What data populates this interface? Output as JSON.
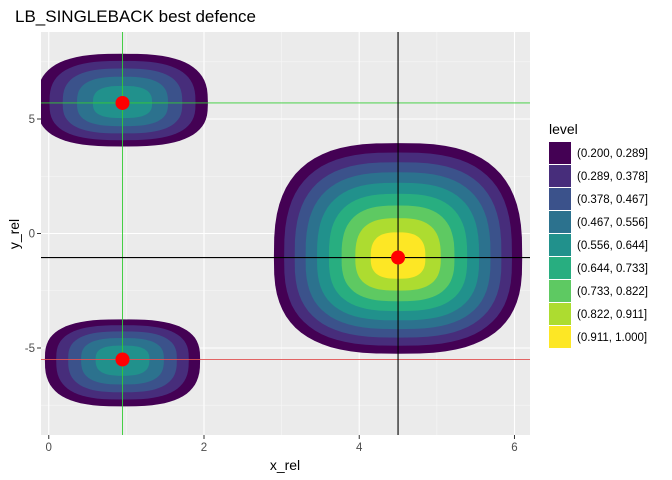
{
  "chart_data": {
    "type": "contour",
    "title": "LB_SINGLEBACK best defence",
    "xlabel": "x_rel",
    "ylabel": "y_rel",
    "xlim": [
      -0.1,
      6.2
    ],
    "ylim": [
      -8.8,
      8.8
    ],
    "x_ticks": [
      0,
      2,
      4,
      6
    ],
    "y_ticks": [
      -5,
      0,
      5
    ],
    "x_tick_labels": [
      "0",
      "2",
      "4",
      "6"
    ],
    "y_tick_labels": [
      "-5",
      "0",
      "5"
    ],
    "grid": true,
    "panel_background": "#ebebeb",
    "legend": {
      "title": "level",
      "placement": "right",
      "entries": [
        {
          "label": "(0.200, 0.289]",
          "color": "#440154"
        },
        {
          "label": "(0.289, 0.378]",
          "color": "#472d7b"
        },
        {
          "label": "(0.378, 0.467]",
          "color": "#3b528b"
        },
        {
          "label": "(0.467, 0.556]",
          "color": "#2c728e"
        },
        {
          "label": "(0.556, 0.644]",
          "color": "#21918c"
        },
        {
          "label": "(0.644, 0.733]",
          "color": "#28ae80"
        },
        {
          "label": "(0.733, 0.822]",
          "color": "#5ec962"
        },
        {
          "label": "(0.822, 0.911]",
          "color": "#addc30"
        },
        {
          "label": "(0.911, 1.000]",
          "color": "#fde725"
        }
      ]
    },
    "density_regions": [
      {
        "cx": 4.5,
        "cy": -1.05,
        "rx": 1.6,
        "ry_up": 5.0,
        "ry_down": 4.2,
        "max_level": 1.0
      },
      {
        "cx": 0.95,
        "cy": 5.7,
        "rx": 1.1,
        "ry_up": 2.15,
        "ry_down": 1.9,
        "max_level": 0.65
      },
      {
        "cx": 0.95,
        "cy": -5.5,
        "rx": 1.0,
        "ry_up": 1.75,
        "ry_down": 2.05,
        "max_level": 0.65
      }
    ],
    "points": [
      {
        "x": 0.95,
        "y": 5.7,
        "color": "#ff0000"
      },
      {
        "x": 0.95,
        "y": -5.5,
        "color": "#ff0000"
      },
      {
        "x": 4.5,
        "y": -1.05,
        "color": "#ff0000"
      }
    ],
    "reference_lines": [
      {
        "orientation": "vertical",
        "value": 0.95,
        "color": "#33cc33"
      },
      {
        "orientation": "horizontal",
        "value": 5.7,
        "color": "#33cc33"
      },
      {
        "orientation": "horizontal",
        "value": -5.5,
        "color": "#e05050"
      },
      {
        "orientation": "vertical",
        "value": 4.5,
        "color": "#000000"
      },
      {
        "orientation": "horizontal",
        "value": -1.05,
        "color": "#000000"
      }
    ]
  }
}
